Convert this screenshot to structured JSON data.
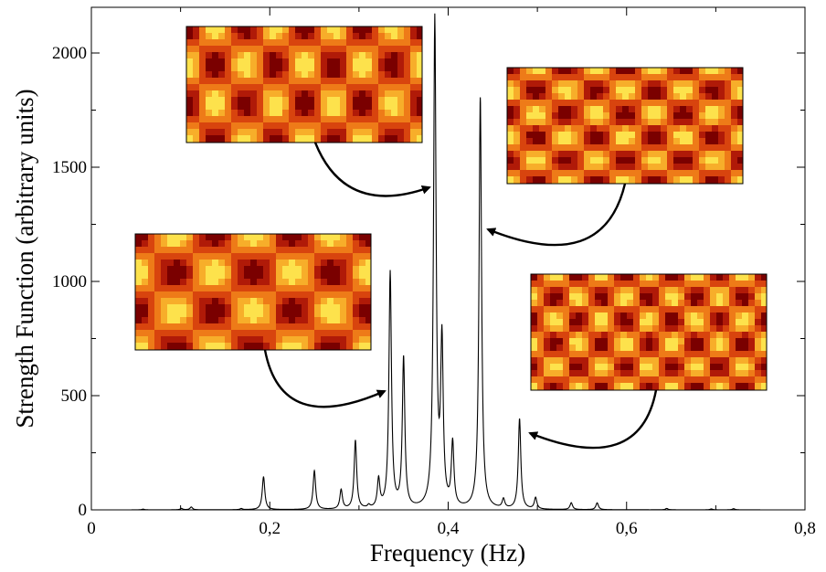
{
  "chart_data": {
    "type": "line",
    "title": "",
    "xlabel": "Frequency (Hz)",
    "ylabel": "Strength Function (arbitrary units)",
    "xlim": [
      0,
      0.8
    ],
    "ylim": [
      0,
      2200
    ],
    "x_ticks": [
      {
        "value": 0,
        "label": "0"
      },
      {
        "value": 0.2,
        "label": "0,2"
      },
      {
        "value": 0.4,
        "label": "0,4"
      },
      {
        "value": 0.6,
        "label": "0,6"
      },
      {
        "value": 0.8,
        "label": "0,8"
      }
    ],
    "y_ticks": [
      {
        "value": 0,
        "label": "0"
      },
      {
        "value": 500,
        "label": "500"
      },
      {
        "value": 1000,
        "label": "1000"
      },
      {
        "value": 1500,
        "label": "1500"
      },
      {
        "value": 2000,
        "label": "2000"
      }
    ],
    "grid": false,
    "line_color": "#000000",
    "series": [
      {
        "peaks": [
          {
            "x": 0.058,
            "y": 3
          },
          {
            "x": 0.101,
            "y": 6
          },
          {
            "x": 0.112,
            "y": 12
          },
          {
            "x": 0.168,
            "y": 5
          },
          {
            "x": 0.193,
            "y": 145
          },
          {
            "x": 0.25,
            "y": 170
          },
          {
            "x": 0.28,
            "y": 85
          },
          {
            "x": 0.296,
            "y": 300
          },
          {
            "x": 0.311,
            "y": 12
          },
          {
            "x": 0.322,
            "y": 125
          },
          {
            "x": 0.335,
            "y": 1035
          },
          {
            "x": 0.35,
            "y": 655
          },
          {
            "x": 0.385,
            "y": 2135
          },
          {
            "x": 0.393,
            "y": 710
          },
          {
            "x": 0.405,
            "y": 280
          },
          {
            "x": 0.436,
            "y": 1800
          },
          {
            "x": 0.462,
            "y": 40
          },
          {
            "x": 0.48,
            "y": 395
          },
          {
            "x": 0.498,
            "y": 50
          },
          {
            "x": 0.538,
            "y": 30
          },
          {
            "x": 0.567,
            "y": 30
          },
          {
            "x": 0.645,
            "y": 6
          },
          {
            "x": 0.695,
            "y": 4
          },
          {
            "x": 0.72,
            "y": 5
          }
        ]
      }
    ],
    "annotations": [
      {
        "pattern": "Cuboid mode pattern",
        "target_x": 0.385,
        "target_y": 1400,
        "cols": 4,
        "rows": 1.5
      },
      {
        "pattern": "Cuboid mode pattern",
        "target_x": 0.44,
        "target_y": 1240,
        "cols": 4,
        "rows": 2.5
      },
      {
        "pattern": "Cuboid mode pattern",
        "target_x": 0.33,
        "target_y": 520,
        "cols": 3,
        "rows": 1.5
      },
      {
        "pattern": "Cuboid mode pattern",
        "target_x": 0.49,
        "target_y": 300,
        "cols": 5,
        "rows": 2.5
      }
    ],
    "colormap": [
      "#7a0000",
      "#b01a08",
      "#d8440e",
      "#ee7b18",
      "#f7ae2a",
      "#fde24c"
    ]
  }
}
